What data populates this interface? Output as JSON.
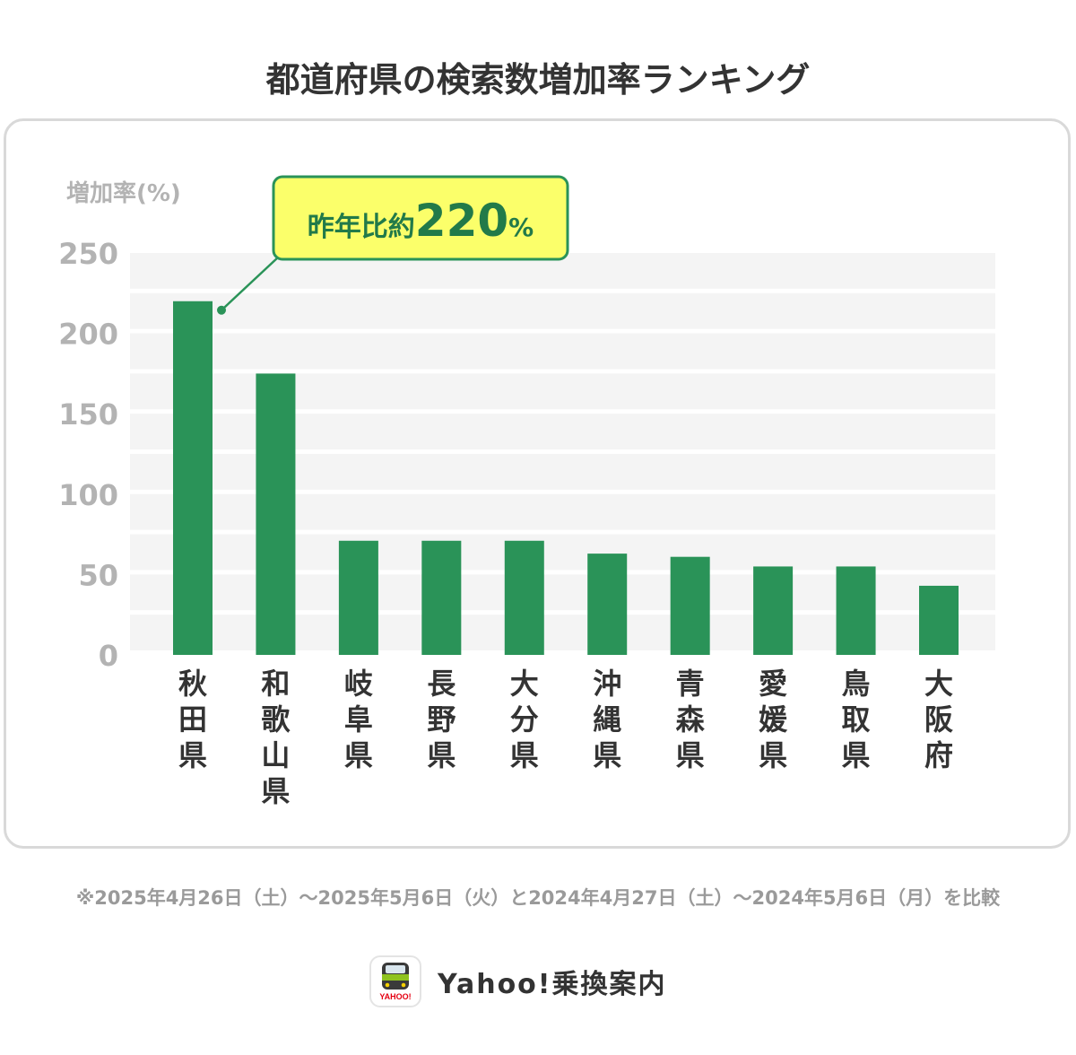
{
  "page": {
    "title": "都道府県の検索数増加率ランキング",
    "footnote": "※2025年4月26日（土）～2025年5月6日（火）と2024年4月27日（土）～2024年5月6日（月）を比較",
    "brand": {
      "name": "Yahoo!乗換案内",
      "icon_label": "YAHOO!"
    }
  },
  "colors": {
    "bar": "#2a9358",
    "callout_bg": "#fbff6a",
    "callout_border": "#2a9358",
    "callout_text": "#227a49",
    "axis_text": "#b3b3b3",
    "band": "#f4f4f4"
  },
  "chart_data": {
    "type": "bar",
    "ylabel": "増加率(%)",
    "ylim": [
      0,
      250
    ],
    "yticks": [
      0,
      50,
      100,
      150,
      200,
      250
    ],
    "categories": [
      "秋田県",
      "和歌山県",
      "岐阜県",
      "長野県",
      "大分県",
      "沖縄県",
      "青森県",
      "愛媛県",
      "鳥取県",
      "大阪府"
    ],
    "values": [
      220,
      175,
      71,
      71,
      71,
      63,
      61,
      55,
      55,
      43
    ],
    "annotation": {
      "category": "秋田県",
      "prefix": "昨年比約",
      "value": "220",
      "unit": "%"
    }
  }
}
